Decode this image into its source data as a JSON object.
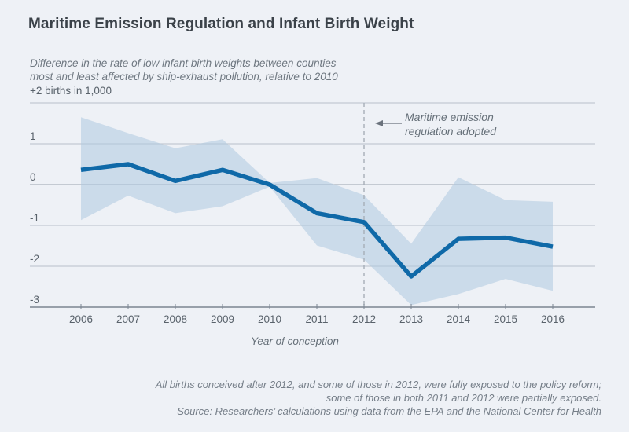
{
  "title": "Maritime Emission Regulation and Infant Birth Weight",
  "subtitle": {
    "line1": "Difference in the rate of low infant birth weights between counties",
    "line2": "most and least affected by ship-exhaust pollution, relative to 2010"
  },
  "y_axis": {
    "top_label": "+2 births in 1,000",
    "tick_labels": [
      "1",
      "0",
      "-1",
      "-2",
      "-3"
    ],
    "tick_values": [
      1,
      0,
      -1,
      -2,
      -3
    ]
  },
  "x_axis": {
    "title": "Year of conception",
    "tick_labels": [
      "2006",
      "2007",
      "2008",
      "2009",
      "2010",
      "2011",
      "2012",
      "2013",
      "2014",
      "2015",
      "2016"
    ]
  },
  "annotation": {
    "line1": "Maritime emission",
    "line2": "regulation adopted",
    "arrow_icon": "left-arrow"
  },
  "footnote": {
    "line1": "All births conceived after 2012, and some of those in 2012, were fully exposed to the policy reform;",
    "line2": "some of those in both 2011 and 2012 were partially exposed.",
    "line3": "Source: Researchers’ calculations using data from the EPA and the National Center for Health"
  },
  "colors": {
    "background": "#eef1f6",
    "line": "#0f69a8",
    "band_fill": "#afc8e0",
    "band_opacity": 0.55,
    "gridline": "#b8c0c9",
    "zero_line": "#9aa3ad",
    "axis": "#7b8591",
    "dashed_line": "#a6aeb8",
    "arrow": "#6a727c",
    "title_text": "#3b4249",
    "muted_text": "#6e7780",
    "label_text": "#59626b"
  },
  "chart_data": {
    "type": "line",
    "title": "Maritime Emission Regulation and Infant Birth Weight",
    "subtitle": "Difference in the rate of low infant birth weights between counties most and least affected by ship-exhaust pollution, relative to 2010",
    "xlabel": "Year of conception",
    "ylabel": "+2 births in 1,000",
    "x": [
      2006,
      2007,
      2008,
      2009,
      2010,
      2011,
      2012,
      2013,
      2014,
      2015,
      2016
    ],
    "series": [
      {
        "name": "Difference in rate of low infant birth weights (per 1,000 births)",
        "values": [
          0.36,
          0.5,
          0.09,
          0.36,
          0.0,
          -0.7,
          -0.92,
          -2.25,
          -1.33,
          -1.3,
          -1.52
        ]
      }
    ],
    "band": {
      "name": "confidence-interval",
      "upper": [
        1.65,
        1.26,
        0.89,
        1.11,
        0.04,
        0.16,
        -0.26,
        -1.45,
        0.18,
        -0.38,
        -0.42
      ],
      "lower": [
        -0.87,
        -0.27,
        -0.7,
        -0.53,
        -0.05,
        -1.49,
        -1.84,
        -2.95,
        -2.68,
        -2.31,
        -2.6
      ]
    },
    "ylim": [
      -3,
      2
    ],
    "xlim": [
      2006,
      2016
    ],
    "grid": true,
    "legend": false,
    "event_line_x": 2012,
    "event_label": "Maritime emission regulation adopted"
  }
}
